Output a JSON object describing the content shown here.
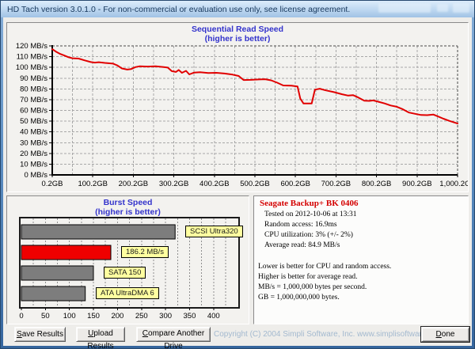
{
  "window": {
    "title": "HD Tach version 3.0.1.0  - For non-commercial or evaluation use only, see license agreement."
  },
  "chart_data": [
    {
      "id": "sequential-read",
      "type": "line",
      "title": "Sequential Read Speed",
      "subtitle": "(higher is better)",
      "x_unit": "GB",
      "y_unit": "MB/s",
      "xlim": [
        0.2,
        1000.2
      ],
      "ylim": [
        0,
        120
      ],
      "grid": true,
      "line_color": "#e10000",
      "y_tick_labels": [
        "0 MB/s",
        "10 MB/s",
        "20 MB/s",
        "30 MB/s",
        "40 MB/s",
        "50 MB/s",
        "60 MB/s",
        "70 MB/s",
        "80 MB/s",
        "90 MB/s",
        "100 MB/s",
        "110 MB/s",
        "120 MB/s"
      ],
      "x_tick_labels": [
        "0.2GB",
        "100.2GB",
        "200.2GB",
        "300.2GB",
        "400.2GB",
        "500.2GB",
        "600.2GB",
        "700.2GB",
        "800.2GB",
        "900.2GB",
        "1,000.2GB"
      ],
      "points_gb_mbps": [
        [
          0,
          117
        ],
        [
          10,
          114.5
        ],
        [
          20,
          112.5
        ],
        [
          30,
          111
        ],
        [
          40,
          109.5
        ],
        [
          50,
          108.5
        ],
        [
          65,
          108.2
        ],
        [
          80,
          106.5
        ],
        [
          95,
          105
        ],
        [
          105,
          104.5
        ],
        [
          115,
          104.8
        ],
        [
          130,
          104.2
        ],
        [
          150,
          103.5
        ],
        [
          160,
          102
        ],
        [
          172,
          99
        ],
        [
          185,
          98
        ],
        [
          195,
          98.5
        ],
        [
          205,
          100.3
        ],
        [
          215,
          101
        ],
        [
          235,
          100.8
        ],
        [
          255,
          101
        ],
        [
          275,
          100.3
        ],
        [
          285,
          99.8
        ],
        [
          295,
          96.5
        ],
        [
          305,
          95.8
        ],
        [
          312,
          97.6
        ],
        [
          320,
          95
        ],
        [
          330,
          96.8
        ],
        [
          338,
          93.5
        ],
        [
          350,
          95.2
        ],
        [
          365,
          95.5
        ],
        [
          385,
          94.8
        ],
        [
          405,
          95
        ],
        [
          425,
          94.3
        ],
        [
          445,
          93.3
        ],
        [
          460,
          92
        ],
        [
          472,
          88.3
        ],
        [
          490,
          88.4
        ],
        [
          510,
          88.8
        ],
        [
          525,
          89
        ],
        [
          540,
          88
        ],
        [
          555,
          85.8
        ],
        [
          570,
          83.2
        ],
        [
          590,
          83
        ],
        [
          605,
          82.3
        ],
        [
          612,
          71
        ],
        [
          620,
          66.4
        ],
        [
          640,
          66.4
        ],
        [
          648,
          79.3
        ],
        [
          660,
          80.2
        ],
        [
          675,
          78.6
        ],
        [
          695,
          77
        ],
        [
          715,
          75
        ],
        [
          730,
          73.8
        ],
        [
          742,
          74.2
        ],
        [
          755,
          72
        ],
        [
          770,
          69
        ],
        [
          782,
          68.8
        ],
        [
          792,
          69.3
        ],
        [
          805,
          68
        ],
        [
          820,
          66.5
        ],
        [
          835,
          64.6
        ],
        [
          850,
          63.4
        ],
        [
          865,
          61
        ],
        [
          880,
          58
        ],
        [
          895,
          56.8
        ],
        [
          910,
          55.7
        ],
        [
          925,
          55.6
        ],
        [
          940,
          56.2
        ],
        [
          952,
          54.3
        ],
        [
          965,
          52.3
        ],
        [
          980,
          50.2
        ],
        [
          1000,
          47.8
        ]
      ]
    },
    {
      "id": "burst-speed",
      "type": "bar",
      "orientation": "horizontal",
      "title": "Burst Speed",
      "subtitle": "(higher is better)",
      "xlim": [
        0,
        450
      ],
      "grid": true,
      "x_tick_values": [
        0,
        50,
        100,
        150,
        200,
        250,
        300,
        350,
        400
      ],
      "x_tick_labels": [
        "0",
        "50",
        "100",
        "150",
        "200",
        "250",
        "300",
        "350",
        "400"
      ],
      "bars": [
        {
          "label": "SCSI Ultra320",
          "value": 320,
          "color": "#7d7d7d"
        },
        {
          "label": "186.2 MB/s",
          "value": 186.2,
          "color": "#ef0000"
        },
        {
          "label": "SATA 150",
          "value": 150,
          "color": "#7d7d7d"
        },
        {
          "label": "ATA UltraDMA 6",
          "value": 133,
          "color": "#7d7d7d"
        }
      ]
    }
  ],
  "info_panel": {
    "drive_name": "Seagate Backup+ BK 0406",
    "tested_on": "Tested on 2012-10-06 at 13:31",
    "random_access": "Random access: 16.9ms",
    "cpu_utilization": "CPU utilization: 3% (+/- 2%)",
    "average_read": "Average read: 84.9 MB/s",
    "notes": [
      "Lower is better for CPU and random access.",
      "Higher is better for average read.",
      "MB/s = 1,000,000 bytes per second.",
      "GB = 1,000,000,000 bytes."
    ]
  },
  "footer": {
    "save_label": "Save Results",
    "upload_label": "Upload Results",
    "compare_label": "Compare Another Drive",
    "done_label": "Done",
    "copyright": "Copyright (C) 2004 Simpli Software, Inc. www.simplisoftware.com"
  },
  "colors": {
    "accent_blue_text": "#3333cc",
    "drive_name_red": "#d40000",
    "line_red": "#e10000",
    "bar_red": "#ef0000",
    "bar_gray": "#7d7d7d",
    "tag_yellow": "#ffffa0",
    "copyright_blue": "#a3b9cf"
  }
}
